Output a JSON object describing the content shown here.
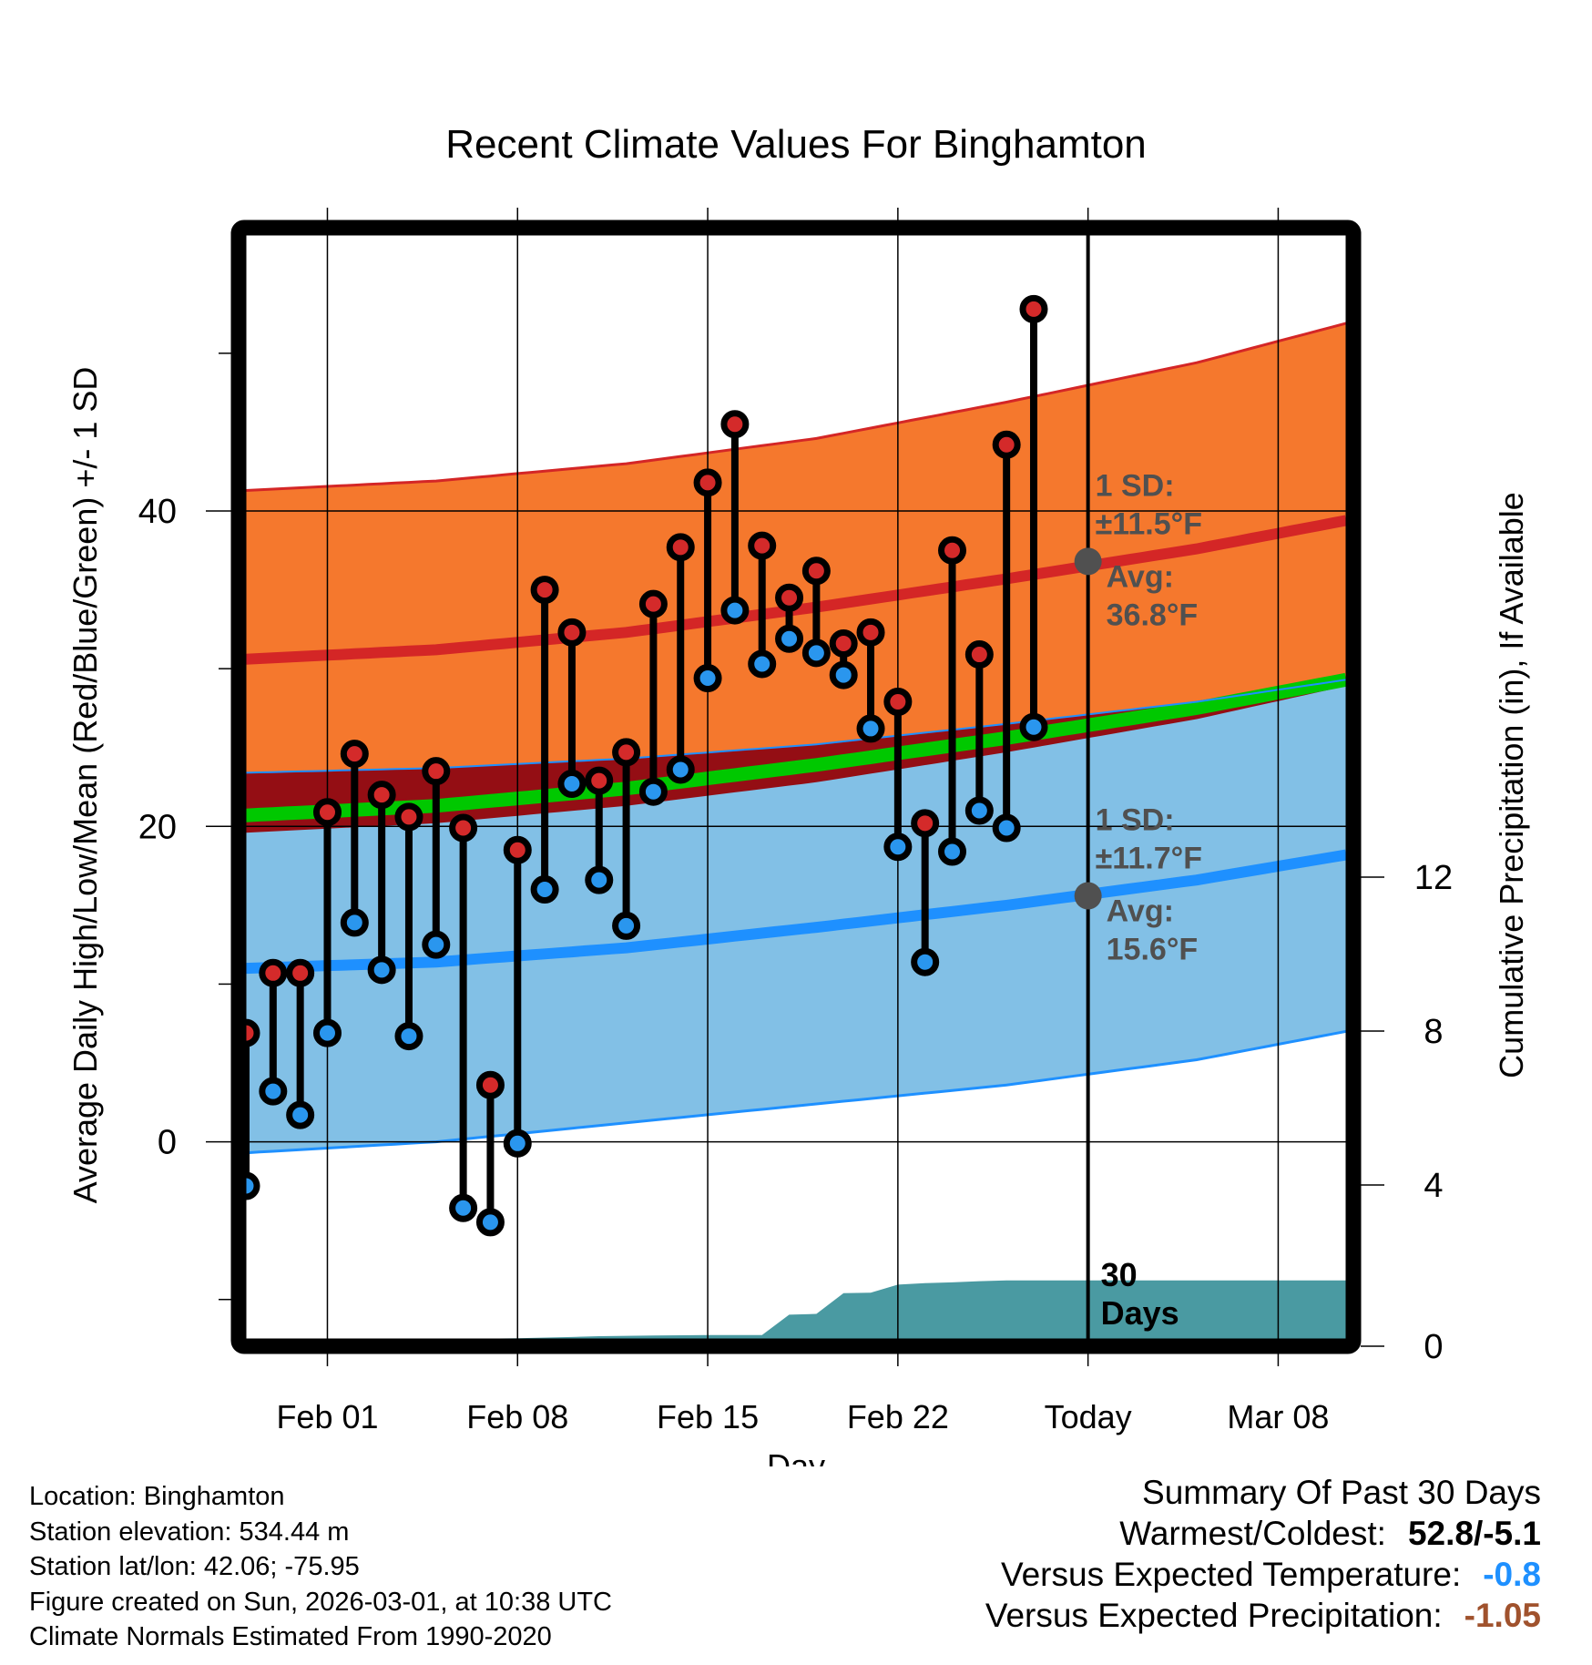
{
  "chart_data": {
    "type": "line",
    "title": "Recent Climate Values For Binghamton",
    "xlabel": "Day",
    "ylabel": "Average Daily High/Low/Mean (Red/Blue/Green) +/- 1 SD",
    "ylabel_right": "Cumulative Precipitation (in), If Available",
    "x_tick_labels": [
      {
        "day_offset": 0,
        "label": "Feb 01"
      },
      {
        "day_offset": 7,
        "label": "Feb 08"
      },
      {
        "day_offset": 14,
        "label": "Feb 15"
      },
      {
        "day_offset": 21,
        "label": "Feb 22"
      },
      {
        "day_offset": 28,
        "label": "Today"
      },
      {
        "day_offset": 35,
        "label": "Mar 08"
      }
    ],
    "xlim_day_offset": [
      -3.0,
      37.5
    ],
    "ylim": [
      -12.5,
      57.5
    ],
    "y_ticks": [
      0,
      20,
      40
    ],
    "y_minor_ticks": [
      -10,
      10,
      30,
      50
    ],
    "y_right_ticks": [
      0,
      4,
      8,
      12
    ],
    "y_right_lim": [
      0,
      28
    ],
    "grid": true,
    "today_offset": 28,
    "today_label": "30\nDays",
    "normals": {
      "x": [
        -3,
        4,
        11,
        18,
        25,
        32,
        37.5
      ],
      "high_plus_sd": [
        41.3,
        41.9,
        43.0,
        44.6,
        46.9,
        49.4,
        51.9
      ],
      "high_mean": [
        30.6,
        31.2,
        32.3,
        33.9,
        35.7,
        37.6,
        39.4
      ],
      "high_minus_sd": [
        23.4,
        23.7,
        24.3,
        25.2,
        26.5,
        27.9,
        29.3
      ],
      "mean": [
        20.7,
        21.3,
        22.4,
        23.9,
        25.6,
        27.5,
        29.3
      ],
      "low_plus_sd": [
        19.6,
        20.2,
        21.3,
        22.8,
        24.7,
        26.8,
        28.9
      ],
      "low_mean": [
        11.0,
        11.4,
        12.3,
        13.6,
        15.0,
        16.6,
        18.2
      ],
      "low_minus_sd": [
        -0.7,
        0.0,
        1.2,
        2.4,
        3.6,
        5.2,
        7.0
      ]
    },
    "series": [
      {
        "name": "Daily High",
        "color": "#d42a2a",
        "day_offsets": [
          -3,
          -2,
          -1,
          0,
          1,
          2,
          3,
          4,
          5,
          6,
          7,
          8,
          9,
          10,
          11,
          12,
          13,
          14,
          15,
          16,
          17,
          18,
          19,
          20,
          21,
          22,
          23,
          24,
          25,
          26
        ],
        "values": [
          6.9,
          10.7,
          10.7,
          20.9,
          24.6,
          22.0,
          20.6,
          23.5,
          19.9,
          3.6,
          18.5,
          35.0,
          32.3,
          22.9,
          24.7,
          34.1,
          37.7,
          41.8,
          45.5,
          37.8,
          34.5,
          36.2,
          31.6,
          32.3,
          27.9,
          20.2,
          37.5,
          30.9,
          44.2,
          52.8
        ]
      },
      {
        "name": "Daily Low",
        "color": "#2a96ee",
        "day_offsets": [
          -3,
          -2,
          -1,
          0,
          1,
          2,
          3,
          4,
          5,
          6,
          7,
          8,
          9,
          10,
          11,
          12,
          13,
          14,
          15,
          16,
          17,
          18,
          19,
          20,
          21,
          22,
          23,
          24,
          25,
          26
        ],
        "values": [
          -2.8,
          3.2,
          1.7,
          6.9,
          13.9,
          10.9,
          6.7,
          12.5,
          -4.2,
          -5.1,
          -0.1,
          16.0,
          22.7,
          16.6,
          13.7,
          22.2,
          23.6,
          29.4,
          33.7,
          30.3,
          31.9,
          31.0,
          29.6,
          26.2,
          18.7,
          11.4,
          18.4,
          21.0,
          19.9,
          26.3
        ]
      },
      {
        "name": "Cumulative Precipitation (in)",
        "color": "#4a9aa2",
        "day_offsets": [
          -3,
          4,
          6,
          7,
          9,
          10,
          12,
          14,
          15,
          16,
          17,
          18,
          19,
          20,
          21,
          22,
          23,
          24,
          25,
          26,
          28,
          37.5
        ],
        "values": [
          0,
          0,
          0.01,
          0.02,
          0.05,
          0.07,
          0.09,
          0.1,
          0.1,
          0.1,
          0.63,
          0.65,
          1.19,
          1.2,
          1.41,
          1.45,
          1.47,
          1.5,
          1.52,
          1.52,
          1.52,
          1.52
        ]
      }
    ],
    "annotations": [
      {
        "label_1": "1 SD:",
        "label_2": "±11.5°F",
        "label_3": "Avg:",
        "label_4": "36.8°F",
        "value": 36.8,
        "sd": 11.5
      },
      {
        "label_1": "1 SD:",
        "label_2": "±11.7°F",
        "label_3": "Avg:",
        "label_4": "15.6°F",
        "value": 15.6,
        "sd": 11.7
      }
    ],
    "colors": {
      "orange_band": "#f5782d",
      "high_line": "#d42626",
      "dark_red_overlap": "#940e14",
      "green_mean": "#00c800",
      "blue_band": "#82c0e6",
      "low_line": "#1e90ff",
      "precip": "#4a9aa2",
      "annotation": "#505050"
    }
  },
  "footer": {
    "location": "Location: Binghamton",
    "elevation": "Station elevation: 534.44 m",
    "latlon": "Station lat/lon: 42.06; -75.95",
    "created": "Figure created on Sun, 2026-03-01, at 10:38 UTC",
    "normals": "Climate Normals Estimated From 1990-2020"
  },
  "summary": {
    "title": "Summary Of Past 30 Days",
    "warmest_label": "Warmest/Coldest:",
    "warmest_value": "52.8/-5.1",
    "temp_label": "Versus Expected Temperature:",
    "temp_value": "-0.8",
    "temp_color": "#1e90ff",
    "precip_label": "Versus Expected Precipitation:",
    "precip_value": "-1.05",
    "precip_color": "#a0522d"
  }
}
